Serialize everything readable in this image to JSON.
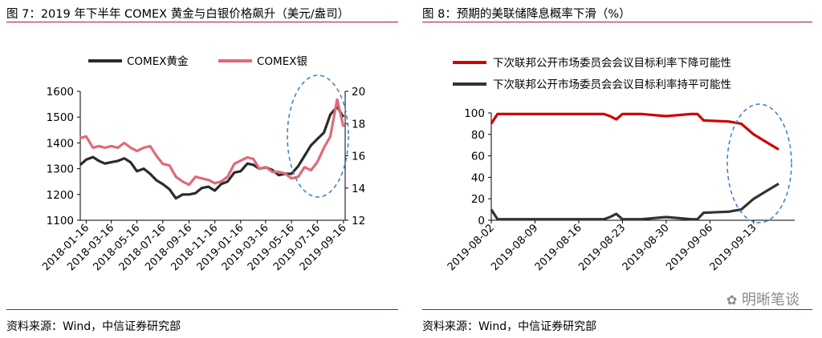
{
  "left": {
    "title": "图 7：2019 年下半年 COMEX 黄金与白银价格飙升（美元/盎司）",
    "source": "资料来源：Wind，中信证券研究部"
  },
  "right": {
    "title": "图 8：预期的美联储降息概率下滑（%）",
    "source": "资料来源：Wind，中信证券研究部"
  },
  "watermark": "明晰笔谈",
  "chart_data": [
    {
      "type": "line",
      "title": "",
      "x_ticks": [
        "2018-01-16",
        "2018-03-16",
        "2018-05-16",
        "2018-07-16",
        "2018-09-16",
        "2018-11-16",
        "2019-01-16",
        "2019-03-16",
        "2019-05-16",
        "2019-07-16",
        "2019-09-16"
      ],
      "ylim_left": [
        1100,
        1600
      ],
      "y_ticks_left": [
        1100,
        1200,
        1300,
        1400,
        1500,
        1600
      ],
      "ylim_right": [
        12,
        20
      ],
      "y_ticks_right": [
        12,
        14,
        16,
        18,
        20
      ],
      "grid": false,
      "legend_position": "top",
      "series": [
        {
          "name": "COMEX黄金",
          "axis": "left",
          "color": "#2b2b2b",
          "x": [
            "2018-01-02",
            "2018-01-16",
            "2018-02-01",
            "2018-02-15",
            "2018-03-01",
            "2018-03-16",
            "2018-04-01",
            "2018-04-16",
            "2018-05-01",
            "2018-05-16",
            "2018-06-01",
            "2018-06-16",
            "2018-07-01",
            "2018-07-16",
            "2018-08-01",
            "2018-08-16",
            "2018-09-01",
            "2018-09-16",
            "2018-10-01",
            "2018-10-16",
            "2018-11-01",
            "2018-11-16",
            "2018-12-01",
            "2018-12-16",
            "2019-01-01",
            "2019-01-16",
            "2019-02-01",
            "2019-02-15",
            "2019-03-01",
            "2019-03-16",
            "2019-04-01",
            "2019-04-16",
            "2019-05-01",
            "2019-05-16",
            "2019-06-01",
            "2019-06-16",
            "2019-07-01",
            "2019-07-16",
            "2019-08-01",
            "2019-08-16",
            "2019-09-01",
            "2019-09-16"
          ],
          "values": [
            1315,
            1335,
            1345,
            1330,
            1320,
            1325,
            1330,
            1340,
            1325,
            1290,
            1300,
            1280,
            1255,
            1240,
            1220,
            1185,
            1200,
            1200,
            1205,
            1225,
            1230,
            1215,
            1240,
            1250,
            1285,
            1290,
            1320,
            1315,
            1300,
            1305,
            1295,
            1275,
            1280,
            1280,
            1310,
            1350,
            1390,
            1415,
            1440,
            1510,
            1540,
            1500
          ]
        },
        {
          "name": "COMEX银",
          "axis": "right",
          "color": "#e06a78",
          "x": [
            "2018-01-02",
            "2018-01-16",
            "2018-02-01",
            "2018-02-15",
            "2018-03-01",
            "2018-03-16",
            "2018-04-01",
            "2018-04-16",
            "2018-05-01",
            "2018-05-16",
            "2018-06-01",
            "2018-06-16",
            "2018-07-01",
            "2018-07-16",
            "2018-08-01",
            "2018-08-16",
            "2018-09-01",
            "2018-09-16",
            "2018-10-01",
            "2018-10-16",
            "2018-11-01",
            "2018-11-16",
            "2018-12-01",
            "2018-12-16",
            "2019-01-01",
            "2019-01-16",
            "2019-02-01",
            "2019-02-15",
            "2019-03-01",
            "2019-03-16",
            "2019-04-01",
            "2019-04-16",
            "2019-05-01",
            "2019-05-16",
            "2019-06-01",
            "2019-06-16",
            "2019-07-01",
            "2019-07-16",
            "2019-08-01",
            "2019-08-16",
            "2019-09-01",
            "2019-09-16"
          ],
          "values": [
            17.1,
            17.2,
            16.5,
            16.6,
            16.5,
            16.6,
            16.5,
            16.8,
            16.5,
            16.3,
            16.5,
            16.6,
            16.0,
            15.5,
            15.4,
            14.7,
            14.4,
            14.2,
            14.7,
            14.6,
            14.5,
            14.3,
            14.4,
            14.7,
            15.5,
            15.7,
            15.9,
            15.8,
            15.2,
            15.3,
            15.0,
            15.0,
            14.9,
            14.6,
            14.7,
            15.3,
            15.1,
            15.6,
            16.5,
            17.2,
            19.5,
            17.8
          ]
        }
      ]
    },
    {
      "type": "line",
      "title": "",
      "x_ticks": [
        "2019-08-02",
        "2019-08-09",
        "2019-08-16",
        "2019-08-23",
        "2019-08-30",
        "2019-09-06",
        "2019-09-13"
      ],
      "x_range": [
        "2019-08-02",
        "2019-09-17"
      ],
      "ylim": [
        0,
        100
      ],
      "y_ticks": [
        0,
        20,
        40,
        60,
        80,
        100
      ],
      "grid": false,
      "legend_position": "top",
      "series": [
        {
          "name": "下次联邦公开市场委员会会议目标利率下降可能性",
          "color": "#d00000",
          "x": [
            "2019-08-02",
            "2019-08-03",
            "2019-08-10",
            "2019-08-17",
            "2019-08-20",
            "2019-08-21",
            "2019-08-22",
            "2019-08-23",
            "2019-08-26",
            "2019-08-30",
            "2019-09-03",
            "2019-09-04",
            "2019-09-05",
            "2019-09-09",
            "2019-09-11",
            "2019-09-13",
            "2019-09-15",
            "2019-09-17"
          ],
          "values": [
            90,
            99,
            99,
            99,
            99,
            97,
            94,
            99,
            99,
            97,
            99,
            99,
            93,
            92,
            90,
            80,
            73,
            66
          ]
        },
        {
          "name": "下次联邦公开市场委员会会议目标利率持平可能性",
          "color": "#333333",
          "x": [
            "2019-08-02",
            "2019-08-03",
            "2019-08-10",
            "2019-08-17",
            "2019-08-20",
            "2019-08-21",
            "2019-08-22",
            "2019-08-23",
            "2019-08-26",
            "2019-08-30",
            "2019-09-03",
            "2019-09-04",
            "2019-09-05",
            "2019-09-09",
            "2019-09-11",
            "2019-09-13",
            "2019-09-15",
            "2019-09-17"
          ],
          "values": [
            10,
            1,
            1,
            1,
            1,
            3,
            6,
            1,
            1,
            3,
            1,
            1,
            7,
            8,
            10,
            20,
            27,
            34
          ]
        }
      ]
    }
  ]
}
